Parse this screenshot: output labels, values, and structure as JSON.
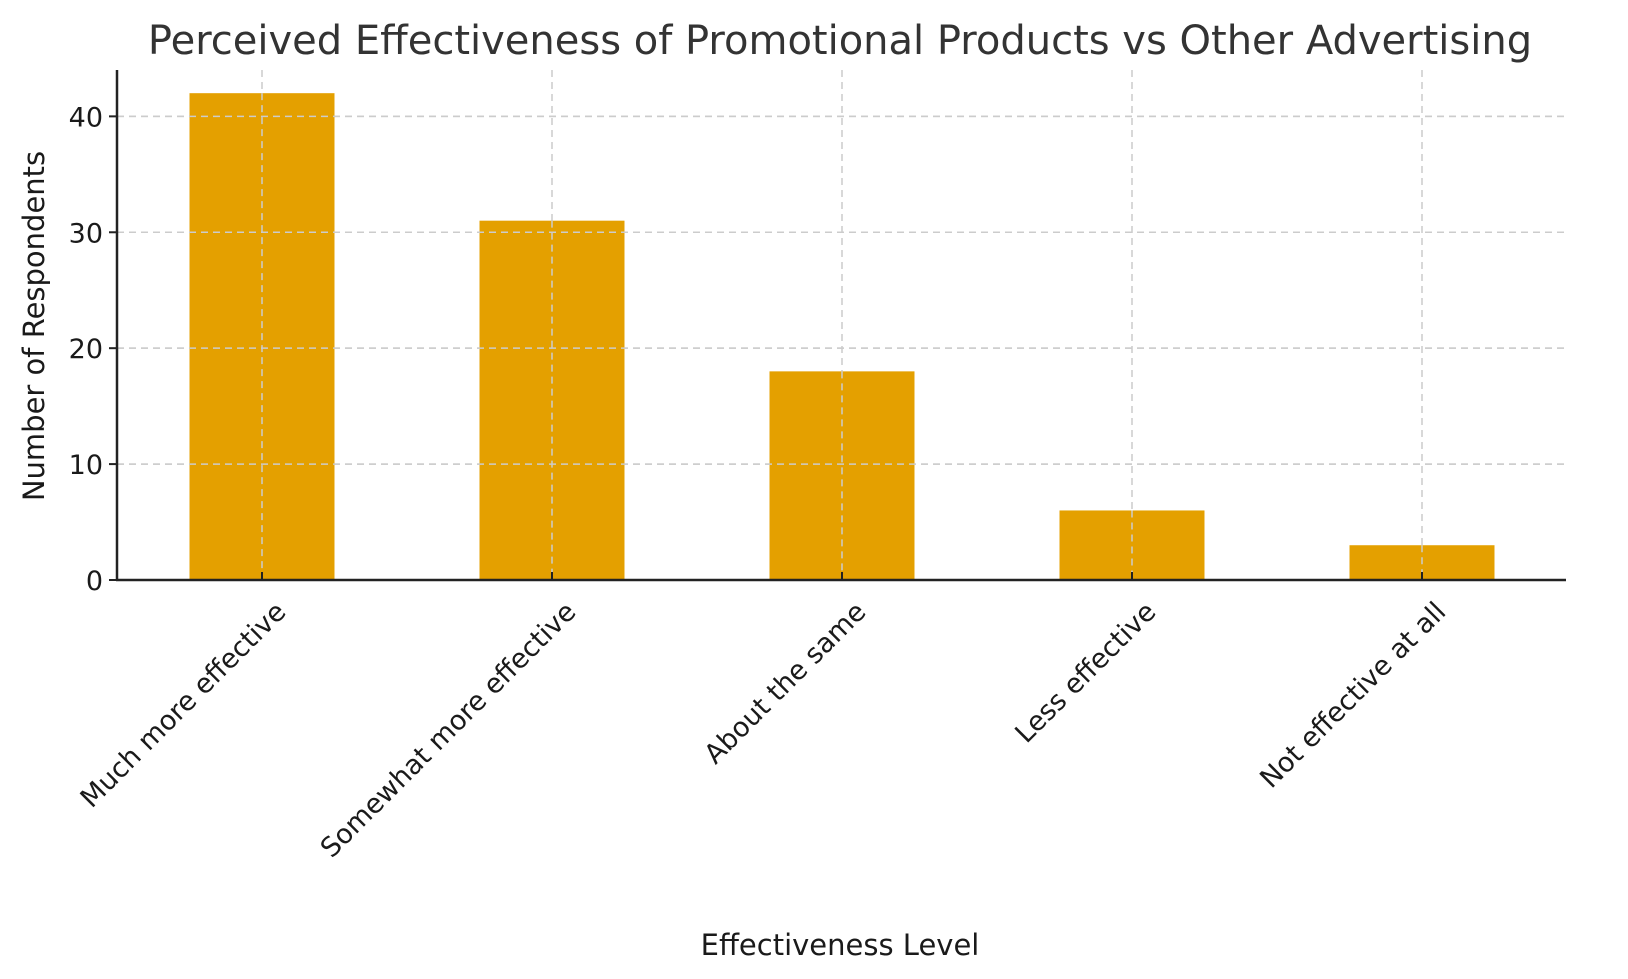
{
  "chart_data": {
    "type": "bar",
    "title": "Perceived Effectiveness of Promotional Products vs Other Advertising",
    "xlabel": "Effectiveness Level",
    "ylabel": "Number of Respondents",
    "categories": [
      "Much more effective",
      "Somewhat more effective",
      "About the same",
      "Less effective",
      "Not effective at all"
    ],
    "values": [
      42,
      31,
      18,
      6,
      3
    ],
    "ylim": [
      0,
      44
    ],
    "yticks": [
      0,
      10,
      20,
      30,
      40
    ],
    "grid": true,
    "legend": "none",
    "bar_color": "#E4A000",
    "xtick_rotation_deg": 45
  }
}
